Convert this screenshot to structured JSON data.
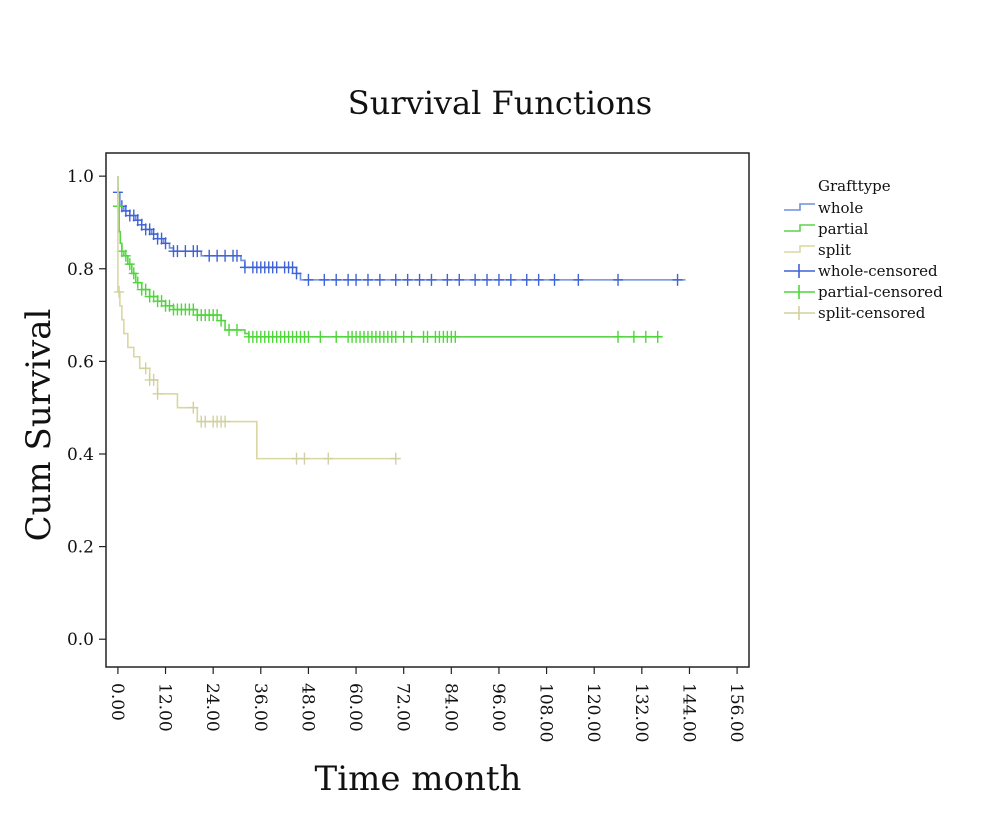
{
  "chart_data": {
    "type": "line",
    "title": "Survival Functions",
    "xlabel": "Time month",
    "ylabel": "Cum Survival",
    "xlim": [
      -3,
      159
    ],
    "ylim": [
      -0.06,
      1.05
    ],
    "x_ticks": [
      "0.00",
      "12.00",
      "24.00",
      "36.00",
      "48.00",
      "60.00",
      "72.00",
      "84.00",
      "96.00",
      "108.00",
      "120.00",
      "132.00",
      "144.00",
      "156.00"
    ],
    "y_ticks": [
      "0.0",
      "0.2",
      "0.4",
      "0.6",
      "0.8",
      "1.0"
    ],
    "legend_title": "Grafttype",
    "legend_placement": "right",
    "series": [
      {
        "name": "whole",
        "color": "#6f8fe0",
        "steps": [
          [
            0,
            1.0
          ],
          [
            0,
            0.965
          ],
          [
            0.5,
            0.935
          ],
          [
            1.5,
            0.925
          ],
          [
            3,
            0.915
          ],
          [
            4.5,
            0.905
          ],
          [
            6,
            0.895
          ],
          [
            7,
            0.885
          ],
          [
            8.5,
            0.875
          ],
          [
            10,
            0.865
          ],
          [
            11.5,
            0.855
          ],
          [
            13,
            0.845
          ],
          [
            14,
            0.838
          ],
          [
            21,
            0.828
          ],
          [
            31,
            0.818
          ],
          [
            32,
            0.803
          ],
          [
            45,
            0.79
          ],
          [
            46,
            0.776
          ],
          [
            143,
            0.776
          ]
        ],
        "censored": [
          0,
          1,
          2,
          3,
          4,
          5,
          6,
          7,
          8,
          9,
          10,
          11,
          12,
          14,
          15,
          17,
          19,
          20,
          23,
          25,
          27,
          29,
          30,
          32,
          34,
          35,
          36,
          37,
          38,
          39,
          40,
          42,
          43,
          44,
          45,
          48,
          52,
          55,
          58,
          60,
          63,
          66,
          70,
          73,
          76,
          79,
          83,
          86,
          90,
          93,
          96,
          99,
          103,
          106,
          110,
          116,
          126,
          141
        ]
      },
      {
        "name": "partial",
        "color": "#5bd34a",
        "steps": [
          [
            0,
            1.0
          ],
          [
            0,
            0.935
          ],
          [
            0.3,
            0.88
          ],
          [
            0.6,
            0.855
          ],
          [
            1,
            0.838
          ],
          [
            1.5,
            0.828
          ],
          [
            2.5,
            0.81
          ],
          [
            3.5,
            0.79
          ],
          [
            4.5,
            0.77
          ],
          [
            6,
            0.755
          ],
          [
            8,
            0.74
          ],
          [
            10,
            0.73
          ],
          [
            12,
            0.72
          ],
          [
            14,
            0.712
          ],
          [
            20,
            0.7
          ],
          [
            26,
            0.688
          ],
          [
            27,
            0.668
          ],
          [
            32,
            0.66
          ],
          [
            33,
            0.653
          ],
          [
            137,
            0.653
          ]
        ],
        "censored": [
          0,
          1,
          2,
          3,
          4,
          5,
          6,
          7,
          8,
          9,
          10,
          11,
          12,
          13,
          14,
          15,
          16,
          17,
          18,
          19,
          20,
          21,
          22,
          23,
          24,
          25,
          26,
          28,
          30,
          33,
          34,
          35,
          36,
          37,
          38,
          39,
          40,
          41,
          42,
          43,
          44,
          45,
          46,
          47,
          48,
          51,
          55,
          58,
          59,
          60,
          61,
          62,
          63,
          64,
          65,
          66,
          67,
          68,
          69,
          70,
          72,
          74,
          77,
          78,
          80,
          81,
          82,
          83,
          84,
          85,
          126,
          130,
          133,
          136
        ]
      },
      {
        "name": "split",
        "color": "#d9d8a0",
        "steps": [
          [
            0,
            1.0
          ],
          [
            0,
            0.75
          ],
          [
            0.5,
            0.72
          ],
          [
            1,
            0.69
          ],
          [
            1.5,
            0.66
          ],
          [
            2.5,
            0.63
          ],
          [
            4,
            0.61
          ],
          [
            5.5,
            0.585
          ],
          [
            8,
            0.56
          ],
          [
            10,
            0.53
          ],
          [
            15,
            0.5
          ],
          [
            20,
            0.47
          ],
          [
            35,
            0.39
          ],
          [
            70,
            0.39
          ]
        ],
        "censored": [
          0.3,
          7,
          8,
          9,
          10,
          19,
          21,
          22,
          24,
          25,
          26,
          27,
          45,
          47,
          53,
          70
        ]
      }
    ],
    "legend": [
      {
        "label": "whole",
        "kind": "step",
        "color": "#6f8fe0"
      },
      {
        "label": "partial",
        "kind": "step",
        "color": "#5bd34a"
      },
      {
        "label": "split",
        "kind": "step",
        "color": "#d9d8a0"
      },
      {
        "label": "whole-censored",
        "kind": "cross",
        "color": "#3f63d6"
      },
      {
        "label": "partial-censored",
        "kind": "cross",
        "color": "#4fd63a"
      },
      {
        "label": "split-censored",
        "kind": "cross",
        "color": "#d2d0a0"
      }
    ]
  }
}
